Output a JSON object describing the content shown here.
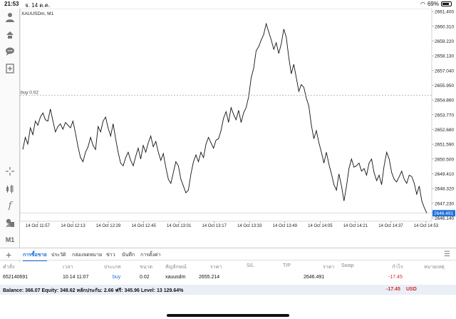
{
  "status": {
    "time": "21:53",
    "date": "จ. 14 ต.ค.",
    "battery": "69%"
  },
  "toolbar": {
    "icons": [
      "account-icon",
      "trade-icon",
      "chat-icon",
      "new-order-icon",
      "crosshair-icon",
      "chart-type-icon",
      "indicator-icon",
      "objects-icon"
    ],
    "timeframe_label": "M1"
  },
  "chart": {
    "symbol_label": "XAUUSDm, M1",
    "buy_line_label": "buy 0.02",
    "current_price": "2646.491",
    "accent": "#1e6fd9"
  },
  "chart_data": {
    "type": "line",
    "title": "XAUUSDm, M1",
    "y_ticks": [
      "2661.400",
      "2660.310",
      "2659.220",
      "2658.130",
      "2657.040",
      "2655.950",
      "2654.860",
      "2653.770",
      "2652.680",
      "2651.590",
      "2650.500",
      "2649.410",
      "2648.320",
      "2647.230",
      "2646.140"
    ],
    "ylim": [
      2645.9,
      2661.62
    ],
    "x_ticks": [
      "14 Oct 11:57",
      "14 Oct 12:13",
      "14 Oct 12:29",
      "14 Oct 12:45",
      "14 Oct 13:01",
      "14 Oct 13:17",
      "14 Oct 13:33",
      "14 Oct 13:49",
      "14 Oct 14:05",
      "14 Oct 14:21",
      "14 Oct 14:37",
      "14 Oct 14:53"
    ],
    "buy_level": 2655.214,
    "last_price": 2646.491,
    "grid": true,
    "values": [
      2651.2,
      2652.1,
      2651.6,
      2652.8,
      2652.3,
      2653.3,
      2653.0,
      2653.6,
      2653.9,
      2653.4,
      2653.3,
      2654.2,
      2653.3,
      2652.5,
      2652.9,
      2653.1,
      2652.7,
      2653.2,
      2653.0,
      2652.8,
      2653.3,
      2652.4,
      2651.4,
      2650.6,
      2650.3,
      2651.0,
      2651.4,
      2652.1,
      2651.5,
      2651.2,
      2652.9,
      2652.5,
      2653.3,
      2653.6,
      2652.8,
      2652.2,
      2653.1,
      2652.0,
      2651.0,
      2650.2,
      2650.0,
      2650.6,
      2651.0,
      2650.4,
      2650.0,
      2650.7,
      2651.3,
      2650.5,
      2651.5,
      2651.0,
      2651.7,
      2652.2,
      2651.4,
      2651.8,
      2651.0,
      2650.4,
      2650.9,
      2649.9,
      2649.0,
      2648.7,
      2649.5,
      2650.3,
      2650.0,
      2649.0,
      2648.5,
      2648.0,
      2648.2,
      2649.4,
      2650.3,
      2650.8,
      2650.3,
      2651.0,
      2650.6,
      2651.6,
      2652.1,
      2651.7,
      2651.3,
      2651.9,
      2652.0,
      2652.6,
      2653.5,
      2654.0,
      2653.2,
      2654.3,
      2653.8,
      2653.4,
      2654.1,
      2653.2,
      2653.9,
      2654.3,
      2655.1,
      2656.5,
      2657.2,
      2658.5,
      2658.8,
      2659.3,
      2659.7,
      2660.5,
      2659.9,
      2659.3,
      2658.6,
      2659.1,
      2658.3,
      2659.0,
      2660.1,
      2659.5,
      2658.0,
      2656.8,
      2657.5,
      2656.5,
      2655.5,
      2656.0,
      2655.8,
      2655.0,
      2654.4,
      2653.0,
      2652.0,
      2652.6,
      2651.7,
      2651.0,
      2650.2,
      2651.0,
      2650.1,
      2649.4,
      2648.6,
      2648.2,
      2649.4,
      2648.5,
      2647.4,
      2648.5,
      2649.8,
      2650.5,
      2649.9,
      2650.0,
      2650.2,
      2649.6,
      2649.8,
      2649.3,
      2650.2,
      2650.5,
      2649.5,
      2648.9,
      2649.3,
      2648.6,
      2650.0,
      2651.0,
      2650.5,
      2649.5,
      2649.0,
      2648.8,
      2649.2,
      2649.6,
      2649.0,
      2648.7,
      2649.3,
      2649.2,
      2648.7,
      2647.9,
      2648.5,
      2647.4,
      2646.9,
      2646.491
    ]
  },
  "trade_panel": {
    "tabs": [
      "การซื้อขาย",
      "ประวัติ",
      "กล่องจดหมาย",
      "ข่าว",
      "บันทึก",
      "การตั้งค่า"
    ],
    "columns": [
      "คำสั่ง",
      "เวลา",
      "ประเภท",
      "ขนาด",
      "สัญลักษณ์",
      "ราคา",
      "S/L",
      "T/P",
      "ราคา",
      "Swap",
      "กำไร",
      "หมายเหตุ"
    ],
    "row": {
      "order": "652140691",
      "time": "10.14 11:07",
      "type": "buy",
      "size": "0.02",
      "symbol": "xauusdm",
      "price": "2655.214",
      "sl": "",
      "tp": "",
      "current_price": "2646.491",
      "swap": "",
      "profit": "-17.45",
      "comment": ""
    },
    "balance_line": "Balance: 366.07 Equity: 348.62 หลักประกัน: 2.66 ฟรี: 345.96 Level: 13 129.64%",
    "total_profit": "-17.45",
    "currency": "USD"
  }
}
